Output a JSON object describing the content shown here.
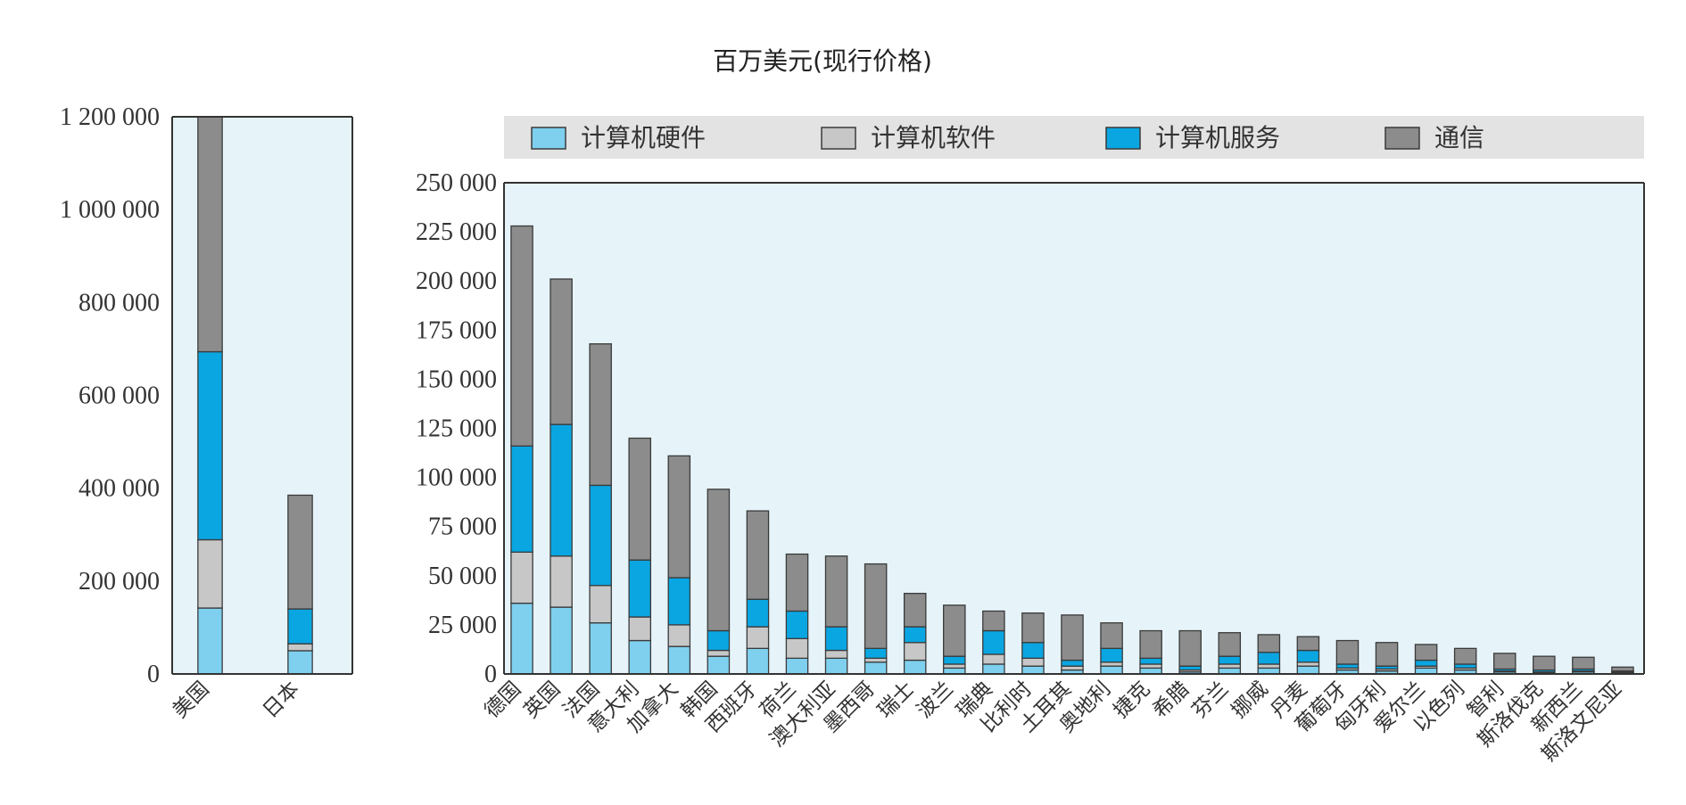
{
  "chart_data": {
    "unit_title": "百万美元(现行价格)",
    "legend": [
      "计算机硬件",
      "计算机软件",
      "计算机服务",
      "通信"
    ],
    "colors": {
      "computer_hardware": "#7fd0ef",
      "computer_software": "#c7c7c7",
      "computer_services": "#0aa6e2",
      "communications": "#8c8c8c",
      "plot_bg": "#e6f4fa",
      "legend_bg": "#e3e3e3"
    },
    "charts": [
      {
        "type": "bar",
        "stacked": true,
        "categories": [
          "美国",
          "日本"
        ],
        "series": [
          {
            "name": "计算机硬件",
            "values": [
              142000,
              50000
            ]
          },
          {
            "name": "计算机软件",
            "values": [
              147000,
              15000
            ]
          },
          {
            "name": "计算机服务",
            "values": [
              405000,
              75000
            ]
          },
          {
            "name": "通信",
            "values": [
              506000,
              245000
            ]
          }
        ],
        "ylim": [
          0,
          1200000
        ],
        "yticks": [
          0,
          200000,
          400000,
          600000,
          800000,
          1000000,
          1200000
        ],
        "ytick_labels": [
          "0",
          "200 000",
          "400 000",
          "600 000",
          "800 000",
          "1 000 000",
          "1 200 000"
        ]
      },
      {
        "type": "bar",
        "stacked": true,
        "categories": [
          "德国",
          "英国",
          "法国",
          "意大利",
          "加拿大",
          "韩国",
          "西班牙",
          "荷兰",
          "澳大利亚",
          "墨西哥",
          "瑞士",
          "波兰",
          "瑞典",
          "比利时",
          "土耳其",
          "奥地利",
          "捷克",
          "希腊",
          "芬兰",
          "挪威",
          "丹麦",
          "葡萄牙",
          "匈牙利",
          "爱尔兰",
          "以色列",
          "智利",
          "斯洛伐克",
          "新西兰",
          "斯洛文尼亚"
        ],
        "series": [
          {
            "name": "计算机硬件",
            "values": [
              36000,
              34000,
              26000,
              17000,
              14000,
              9000,
              13000,
              8000,
              8000,
              6000,
              7000,
              3000,
              5000,
              4000,
              2000,
              4000,
              3000,
              1000,
              3000,
              3000,
              4000,
              2000,
              1500,
              3000,
              2000,
              1000,
              500,
              1000,
              500
            ]
          },
          {
            "name": "计算机软件",
            "values": [
              26000,
              26000,
              19000,
              12000,
              11000,
              3000,
              11000,
              10000,
              4000,
              2000,
              9000,
              2000,
              5000,
              4000,
              2000,
              2000,
              2000,
              1000,
              2000,
              2000,
              2000,
              1000,
              1000,
              1000,
              1000,
              500,
              500,
              500,
              500
            ]
          },
          {
            "name": "计算机服务",
            "values": [
              54000,
              67000,
              51000,
              29000,
              24000,
              10000,
              14000,
              14000,
              12000,
              5000,
              8000,
              4000,
              12000,
              8000,
              3000,
              7000,
              3000,
              2000,
              4000,
              6000,
              6000,
              2000,
              1500,
              3000,
              2000,
              1000,
              1000,
              1000,
              500
            ]
          },
          {
            "name": "通信",
            "values": [
              112000,
              74000,
              72000,
              62000,
              62000,
              72000,
              45000,
              29000,
              36000,
              43000,
              17000,
              26000,
              10000,
              15000,
              23000,
              13000,
              14000,
              18000,
              12000,
              9000,
              7000,
              12000,
              12000,
              8000,
              8000,
              8000,
              7000,
              6000,
              2000
            ]
          }
        ],
        "ylim": [
          0,
          250000
        ],
        "yticks": [
          0,
          25000,
          50000,
          75000,
          100000,
          125000,
          150000,
          175000,
          200000,
          225000,
          250000
        ],
        "ytick_labels": [
          "0",
          "25 000",
          "50 000",
          "75 000",
          "100 000",
          "125 000",
          "150 000",
          "175 000",
          "200 000",
          "225 000",
          "250 000"
        ]
      }
    ]
  }
}
